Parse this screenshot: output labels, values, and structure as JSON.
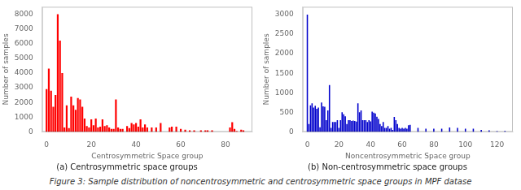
{
  "chart_data": [
    {
      "type": "bar",
      "subtitle": "(a) Centrosymmetric space groups",
      "xlabel": "Centrosymmetric Space group",
      "ylabel": "Number of samples",
      "color": "#ff0000",
      "xlim": [
        -2,
        92
      ],
      "ylim": [
        0,
        8500
      ],
      "xticks": [
        0,
        20,
        40,
        60,
        80
      ],
      "yticks": [
        0,
        1000,
        2000,
        3000,
        4000,
        5000,
        6000,
        7000,
        8000
      ],
      "grid": false,
      "x": [
        0,
        1,
        2,
        3,
        4,
        5,
        6,
        7,
        8,
        9,
        10,
        11,
        12,
        13,
        14,
        15,
        16,
        17,
        18,
        19,
        20,
        21,
        22,
        23,
        24,
        25,
        26,
        27,
        28,
        29,
        30,
        31,
        32,
        33,
        34,
        36,
        37,
        38,
        39,
        40,
        41,
        42,
        43,
        44,
        45,
        47,
        49,
        51,
        55,
        56,
        58,
        60,
        62,
        64,
        66,
        69,
        71,
        72,
        74,
        82,
        83,
        84,
        85,
        87,
        88
      ],
      "values": [
        2900,
        4300,
        2800,
        1700,
        2500,
        8000,
        6200,
        4000,
        300,
        1800,
        250,
        2400,
        1800,
        1500,
        2300,
        2200,
        1700,
        900,
        400,
        300,
        850,
        450,
        900,
        300,
        350,
        850,
        400,
        450,
        300,
        200,
        200,
        2200,
        300,
        200,
        200,
        400,
        250,
        600,
        500,
        600,
        350,
        850,
        300,
        500,
        300,
        300,
        300,
        600,
        300,
        350,
        350,
        200,
        150,
        100,
        100,
        100,
        100,
        100,
        100,
        300,
        650,
        200,
        50,
        150,
        100
      ]
    },
    {
      "type": "bar",
      "subtitle": "(b) Non-centrosymmetric space groups",
      "xlabel": "Noncentrosymmetric Space group",
      "ylabel": "Number of samples",
      "color": "#0000cc",
      "xlim": [
        -3,
        130
      ],
      "ylim": [
        0,
        3200
      ],
      "xticks": [
        0,
        20,
        40,
        60,
        80,
        100,
        120
      ],
      "yticks": [
        0,
        500,
        1000,
        1500,
        2000,
        2500,
        3000
      ],
      "grid": false,
      "x": [
        0,
        1,
        2,
        3,
        4,
        5,
        6,
        7,
        8,
        9,
        10,
        11,
        12,
        13,
        14,
        15,
        16,
        17,
        18,
        19,
        20,
        21,
        22,
        23,
        24,
        25,
        26,
        27,
        28,
        29,
        30,
        31,
        32,
        33,
        34,
        35,
        36,
        37,
        38,
        39,
        40,
        41,
        42,
        43,
        44,
        45,
        46,
        47,
        48,
        49,
        50,
        51,
        52,
        53,
        54,
        55,
        56,
        57,
        58,
        59,
        60,
        61,
        62,
        63,
        64,
        65,
        70,
        75,
        80,
        85,
        90,
        95,
        100,
        105,
        110,
        115,
        120,
        125
      ],
      "values": [
        3000,
        200,
        680,
        730,
        620,
        670,
        590,
        620,
        120,
        750,
        650,
        640,
        300,
        550,
        1200,
        100,
        250,
        250,
        250,
        300,
        100,
        300,
        500,
        450,
        400,
        200,
        300,
        300,
        280,
        290,
        280,
        265,
        730,
        500,
        550,
        300,
        300,
        300,
        250,
        300,
        270,
        520,
        490,
        470,
        390,
        330,
        200,
        150,
        250,
        100,
        100,
        150,
        80,
        100,
        50,
        380,
        300,
        200,
        100,
        80,
        100,
        80,
        100,
        80,
        170,
        180,
        100,
        80,
        80,
        80,
        110,
        100,
        80,
        80,
        50,
        40,
        20,
        25
      ]
    }
  ],
  "caption": "Figure 3: Sample distribution of noncentrosymmetric and centrosymmetric space groups in MPF datase"
}
